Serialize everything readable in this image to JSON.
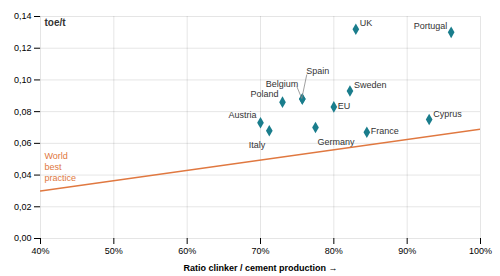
{
  "chart_data": {
    "type": "scatter",
    "xlabel": "Ratio clinker / cement production",
    "ylabel": "toe/t",
    "xlim": [
      0.4,
      1.0
    ],
    "ylim": [
      0.0,
      0.14
    ],
    "xticks": [
      {
        "value": 0.4,
        "label": "40%"
      },
      {
        "value": 0.5,
        "label": "50%"
      },
      {
        "value": 0.6,
        "label": "60%"
      },
      {
        "value": 0.7,
        "label": "70%"
      },
      {
        "value": 0.8,
        "label": "80%"
      },
      {
        "value": 0.9,
        "label": "90%"
      },
      {
        "value": 1.0,
        "label": "100%"
      }
    ],
    "yticks": [
      {
        "value": 0.0,
        "label": "0,00"
      },
      {
        "value": 0.02,
        "label": "0,02"
      },
      {
        "value": 0.04,
        "label": "0,04"
      },
      {
        "value": 0.06,
        "label": "0,06"
      },
      {
        "value": 0.08,
        "label": "0,08"
      },
      {
        "value": 0.1,
        "label": "0,10"
      },
      {
        "value": 0.12,
        "label": "0,12"
      },
      {
        "value": 0.14,
        "label": "0,14"
      }
    ],
    "grid": true,
    "series": [
      {
        "type": "scatter",
        "color": "#1a7d8c",
        "marker": "diamond",
        "labels": [
          "UK",
          "Portugal",
          "Belgium",
          "Spain",
          "Poland",
          "Sweden",
          "EU",
          "Austria",
          "Italy",
          "Germany",
          "France",
          "Cyprus"
        ],
        "x": [
          0.83,
          0.96,
          0.757,
          0.757,
          0.73,
          0.822,
          0.8,
          0.7,
          0.712,
          0.775,
          0.845,
          0.93
        ],
        "values": [
          0.132,
          0.13,
          0.088,
          0.088,
          0.086,
          0.093,
          0.083,
          0.073,
          0.068,
          0.07,
          0.067,
          0.075
        ]
      },
      {
        "type": "line",
        "name": "World\nbest\npractice",
        "color": "#e07840",
        "x": [
          0.4,
          1.0
        ],
        "values": [
          0.03,
          0.069
        ]
      }
    ]
  }
}
